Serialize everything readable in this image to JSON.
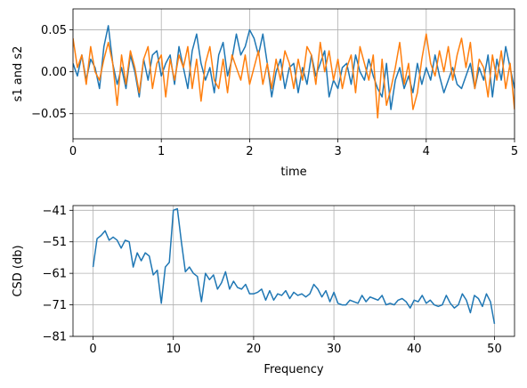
{
  "chart_data": [
    {
      "type": "line",
      "title": "",
      "xlabel": "time",
      "ylabel": "s1 and s2",
      "xlim": [
        0,
        5
      ],
      "ylim": [
        -0.08,
        0.075
      ],
      "xticks": [
        0,
        1,
        2,
        3,
        4,
        5
      ],
      "xtick_labels": [
        "0",
        "1",
        "2",
        "3",
        "4",
        "5"
      ],
      "yticks": [
        0.05,
        0.0,
        -0.05
      ],
      "ytick_labels": [
        "0.05",
        "0.00",
        "−0.05"
      ],
      "grid": true,
      "colors": [
        "#1f77b4",
        "#ff7f0e"
      ],
      "series": [
        {
          "x": [
            0,
            0.05,
            0.1,
            0.15,
            0.2,
            0.25,
            0.3,
            0.35,
            0.4,
            0.45,
            0.5,
            0.55,
            0.6,
            0.65,
            0.7,
            0.75,
            0.8,
            0.85,
            0.9,
            0.95,
            1.0,
            1.05,
            1.1,
            1.15,
            1.2,
            1.25,
            1.3,
            1.35,
            1.4,
            1.45,
            1.5,
            1.55,
            1.6,
            1.65,
            1.7,
            1.75,
            1.8,
            1.85,
            1.9,
            1.95,
            2.0,
            2.05,
            2.1,
            2.15,
            2.2,
            2.25,
            2.3,
            2.35,
            2.4,
            2.45,
            2.5,
            2.55,
            2.6,
            2.65,
            2.7,
            2.75,
            2.8,
            2.85,
            2.9,
            2.95,
            3.0,
            3.05,
            3.1,
            3.15,
            3.2,
            3.25,
            3.3,
            3.35,
            3.4,
            3.45,
            3.5,
            3.55,
            3.6,
            3.65,
            3.7,
            3.75,
            3.8,
            3.85,
            3.9,
            3.95,
            4.0,
            4.05,
            4.1,
            4.15,
            4.2,
            4.25,
            4.3,
            4.35,
            4.4,
            4.45,
            4.5,
            4.55,
            4.6,
            4.65,
            4.7,
            4.75,
            4.8,
            4.85,
            4.9,
            4.95,
            5.0
          ],
          "y": [
            0.01,
            -0.005,
            0.02,
            -0.01,
            0.015,
            0.005,
            -0.02,
            0.03,
            0.055,
            0.01,
            -0.015,
            0.005,
            -0.02,
            0.02,
            0.0,
            -0.03,
            0.015,
            -0.01,
            0.02,
            0.025,
            -0.005,
            0.01,
            0.02,
            -0.015,
            0.03,
            0.005,
            -0.02,
            0.025,
            0.045,
            0.01,
            -0.01,
            0.005,
            -0.025,
            0.02,
            0.035,
            -0.005,
            0.015,
            0.045,
            0.02,
            0.03,
            0.05,
            0.04,
            0.02,
            0.045,
            0.01,
            -0.03,
            0.0,
            0.015,
            -0.02,
            0.005,
            0.01,
            -0.025,
            0.005,
            -0.015,
            0.02,
            -0.005,
            0.01,
            0.025,
            -0.03,
            -0.01,
            -0.02,
            0.005,
            0.01,
            -0.015,
            0.02,
            0.0,
            -0.01,
            0.015,
            -0.005,
            -0.02,
            -0.03,
            0.01,
            -0.045,
            -0.01,
            0.005,
            -0.02,
            -0.005,
            -0.025,
            0.01,
            -0.015,
            0.005,
            -0.01,
            0.02,
            -0.005,
            -0.025,
            -0.01,
            0.005,
            -0.015,
            -0.02,
            -0.005,
            0.01,
            -0.02,
            0.005,
            -0.01,
            0.02,
            -0.03,
            0.015,
            -0.01,
            0.03,
            0.005,
            -0.02
          ]
        },
        {
          "x": [
            0,
            0.05,
            0.1,
            0.15,
            0.2,
            0.25,
            0.3,
            0.35,
            0.4,
            0.45,
            0.5,
            0.55,
            0.6,
            0.65,
            0.7,
            0.75,
            0.8,
            0.85,
            0.9,
            0.95,
            1.0,
            1.05,
            1.1,
            1.15,
            1.2,
            1.25,
            1.3,
            1.35,
            1.4,
            1.45,
            1.5,
            1.55,
            1.6,
            1.65,
            1.7,
            1.75,
            1.8,
            1.85,
            1.9,
            1.95,
            2.0,
            2.05,
            2.1,
            2.15,
            2.2,
            2.25,
            2.3,
            2.35,
            2.4,
            2.45,
            2.5,
            2.55,
            2.6,
            2.65,
            2.7,
            2.75,
            2.8,
            2.85,
            2.9,
            2.95,
            3.0,
            3.05,
            3.1,
            3.15,
            3.2,
            3.25,
            3.3,
            3.35,
            3.4,
            3.45,
            3.5,
            3.55,
            3.6,
            3.65,
            3.7,
            3.75,
            3.8,
            3.85,
            3.9,
            3.95,
            4.0,
            4.05,
            4.1,
            4.15,
            4.2,
            4.25,
            4.3,
            4.35,
            4.4,
            4.45,
            4.5,
            4.55,
            4.6,
            4.65,
            4.7,
            4.75,
            4.8,
            4.85,
            4.9,
            4.95,
            5.0
          ],
          "y": [
            0.04,
            0.005,
            0.02,
            -0.015,
            0.03,
            0.0,
            -0.01,
            0.015,
            0.035,
            0.01,
            -0.04,
            0.02,
            -0.015,
            0.025,
            0.005,
            -0.025,
            0.015,
            0.03,
            -0.02,
            0.01,
            0.02,
            -0.03,
            0.015,
            -0.01,
            0.02,
            0.005,
            0.03,
            -0.02,
            0.015,
            -0.035,
            0.01,
            0.03,
            -0.01,
            -0.02,
            0.015,
            -0.025,
            0.02,
            0.005,
            -0.01,
            0.02,
            -0.015,
            0.005,
            0.025,
            -0.015,
            0.01,
            -0.02,
            0.015,
            -0.01,
            0.025,
            0.01,
            -0.02,
            0.015,
            -0.01,
            0.03,
            0.02,
            -0.015,
            0.035,
            0.0,
            0.025,
            -0.01,
            0.015,
            -0.02,
            0.005,
            0.02,
            -0.025,
            0.03,
            0.01,
            -0.01,
            0.02,
            -0.055,
            0.015,
            -0.04,
            -0.02,
            0.005,
            0.035,
            -0.015,
            0.01,
            -0.045,
            -0.025,
            0.015,
            0.045,
            0.01,
            -0.005,
            0.025,
            0.0,
            0.03,
            -0.01,
            0.02,
            0.04,
            0.005,
            0.035,
            -0.02,
            0.015,
            0.005,
            -0.03,
            0.02,
            -0.01,
            0.025,
            -0.02,
            0.01,
            -0.045
          ]
        }
      ]
    },
    {
      "type": "line",
      "title": "",
      "xlabel": "Frequency",
      "ylabel": "CSD (db)",
      "xlim": [
        -2.5,
        52.5
      ],
      "ylim": [
        -81,
        -39.5
      ],
      "xticks": [
        0,
        10,
        20,
        30,
        40,
        50
      ],
      "xtick_labels": [
        "0",
        "10",
        "20",
        "30",
        "40",
        "50"
      ],
      "yticks": [
        -41,
        -51,
        -61,
        -71,
        -81
      ],
      "ytick_labels": [
        "−41",
        "−51",
        "−61",
        "−71",
        "−81"
      ],
      "grid": true,
      "colors": [
        "#1f77b4"
      ],
      "series": [
        {
          "x": [
            0,
            0.5,
            1,
            1.5,
            2,
            2.5,
            3,
            3.5,
            4,
            4.5,
            5,
            5.5,
            6,
            6.5,
            7,
            7.5,
            8,
            8.5,
            9,
            9.5,
            10,
            10.5,
            11,
            11.5,
            12,
            12.5,
            13,
            13.5,
            14,
            14.5,
            15,
            15.5,
            16,
            16.5,
            17,
            17.5,
            18,
            18.5,
            19,
            19.5,
            20,
            20.5,
            21,
            21.5,
            22,
            22.5,
            23,
            23.5,
            24,
            24.5,
            25,
            25.5,
            26,
            26.5,
            27,
            27.5,
            28,
            28.5,
            29,
            29.5,
            30,
            30.5,
            31,
            31.5,
            32,
            32.5,
            33,
            33.5,
            34,
            34.5,
            35,
            35.5,
            36,
            36.5,
            37,
            37.5,
            38,
            38.5,
            39,
            39.5,
            40,
            40.5,
            41,
            41.5,
            42,
            42.5,
            43,
            43.5,
            44,
            44.5,
            45,
            45.5,
            46,
            46.5,
            47,
            47.5,
            48,
            48.5,
            49,
            49.5,
            50
          ],
          "y": [
            -59,
            -50,
            -49,
            -47.5,
            -50.5,
            -49.5,
            -50.5,
            -53,
            -50.5,
            -51,
            -59,
            -54.5,
            -57,
            -54.5,
            -55.5,
            -61.5,
            -60,
            -70.5,
            -59,
            -57.5,
            -41,
            -40.5,
            -51,
            -60.5,
            -59,
            -61,
            -62,
            -70,
            -61,
            -63,
            -61.5,
            -66,
            -64,
            -60.5,
            -66,
            -63.5,
            -65.5,
            -66,
            -64.5,
            -67.5,
            -67.5,
            -67,
            -66,
            -69.5,
            -66.5,
            -69.5,
            -67.5,
            -68,
            -66.5,
            -69,
            -67,
            -68,
            -67.5,
            -68.5,
            -67.5,
            -64.5,
            -66,
            -68.5,
            -66.5,
            -70,
            -67,
            -70.5,
            -71,
            -71,
            -69.5,
            -70,
            -70.5,
            -68,
            -70,
            -68.5,
            -69,
            -69.5,
            -68,
            -71,
            -70.5,
            -71,
            -69.5,
            -69,
            -70,
            -72,
            -69.5,
            -70,
            -68,
            -70.5,
            -69.5,
            -71,
            -71.5,
            -71,
            -68,
            -70.5,
            -72,
            -71,
            -67.5,
            -69.5,
            -73.5,
            -68,
            -69,
            -71.5,
            -67.5,
            -70,
            -77
          ]
        }
      ]
    }
  ]
}
